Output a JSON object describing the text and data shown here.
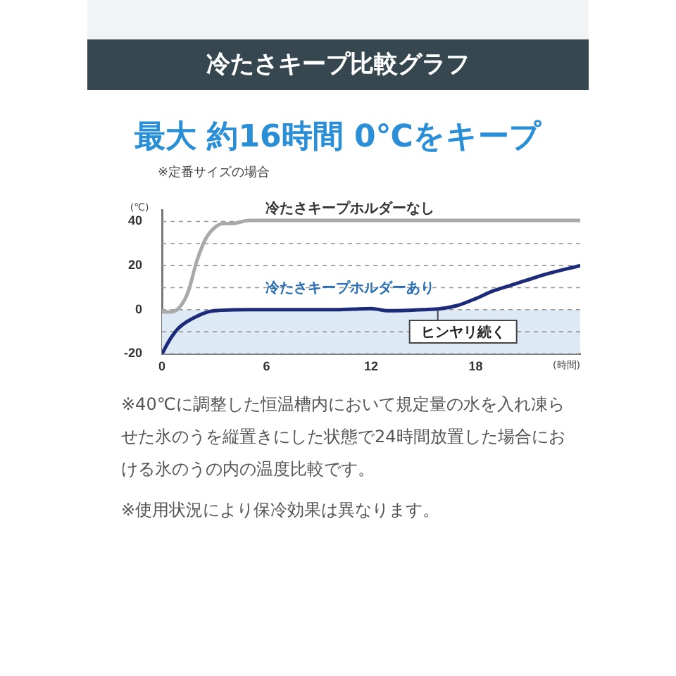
{
  "chart_data": {
    "type": "line",
    "title": "冷たさキープ比較グラフ",
    "subtitle": "最大 約16時間 0℃をキープ",
    "xlabel": "(時間)",
    "ylabel": "(℃)",
    "annotations": [
      "※定番サイズの場合",
      "※40℃に調整した恒温槽内において規定量の水を入れ凍らせた氷のうを縦置きにした状態で24時間放置した場合における氷のうの内の温度比較です。",
      "※使用状況により保冷効果は異なります。"
    ],
    "series": [
      {
        "name": "冷たさキープホルダーなし",
        "color": "#a9a9a9",
        "x": [
          0,
          0.5,
          1,
          1.5,
          2,
          2.5,
          3,
          3.5,
          4,
          5,
          8,
          12,
          16,
          20,
          24
        ],
        "values": [
          -1,
          -1,
          1,
          8,
          22,
          32,
          37,
          39,
          39,
          40.5,
          40.5,
          40.5,
          40.5,
          40.5,
          40.5
        ]
      },
      {
        "name": "冷たさキープホルダーあり",
        "color": "#1c2a7a",
        "x": [
          0,
          0.5,
          1,
          2,
          3,
          5,
          8,
          10,
          12,
          13,
          15,
          16,
          17,
          18,
          19,
          20,
          22,
          24
        ],
        "values": [
          -20,
          -13,
          -8,
          -3,
          -0.5,
          0,
          0,
          0,
          0.5,
          -0.5,
          0,
          0.5,
          2,
          5,
          8.5,
          11,
          16,
          20
        ]
      }
    ],
    "bands": [
      {
        "axis": "y",
        "from": -20,
        "to": 0,
        "label": "ヒンヤリ続く",
        "color": "#dde9f5"
      }
    ],
    "xlim": [
      0,
      24
    ],
    "xticks": [
      0,
      6,
      12,
      18
    ],
    "ylim": [
      -20,
      45
    ],
    "yticks": [
      -20,
      {
        "value": -10,
        "label": null
      },
      0,
      {
        "value": 10,
        "label": null
      },
      20,
      {
        "value": 30,
        "label": null
      },
      40
    ],
    "grid": "y",
    "legend": false,
    "marker": "none",
    "line_style": "solid"
  }
}
